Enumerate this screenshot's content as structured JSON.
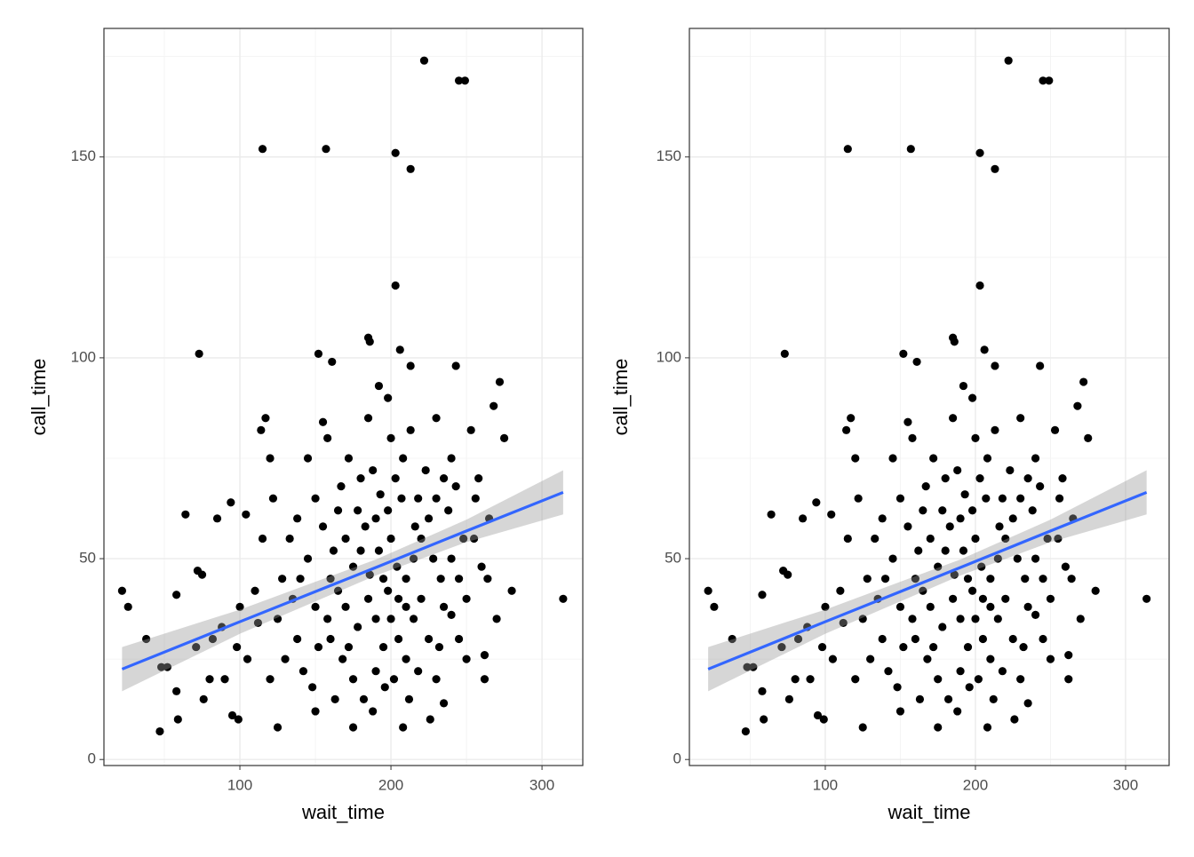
{
  "chart_data": [
    {
      "type": "scatter",
      "x_label": "wait_time",
      "y_label": "call_time",
      "color": "#000000",
      "grid": true,
      "xlim": [
        10,
        327
      ],
      "ylim": [
        -1.5,
        182
      ],
      "xticks": [
        100,
        200,
        300
      ],
      "yticks": [
        0,
        50,
        100,
        150
      ],
      "x_minor_grid": [
        50,
        150,
        250
      ],
      "y_minor_grid": [
        25,
        75,
        125,
        175
      ],
      "x": [
        22,
        26,
        38,
        47,
        48,
        52,
        58,
        58,
        59,
        64,
        71,
        72,
        73,
        75,
        76,
        80,
        82,
        85,
        88,
        90,
        94,
        95,
        98,
        99,
        104,
        112,
        114,
        115,
        117,
        120,
        125,
        138,
        150,
        152,
        155,
        157,
        161,
        175,
        185,
        186,
        192,
        203,
        203,
        206,
        208,
        213,
        213,
        222,
        235,
        245,
        249,
        243,
        262,
        272,
        275,
        280,
        314,
        268,
        262,
        270,
        230,
        200,
        180,
        165,
        170,
        190,
        140,
        145,
        135,
        150,
        160,
        168,
        175,
        182,
        190,
        195,
        200,
        205,
        210,
        215,
        220,
        225,
        230,
        235,
        240,
        245,
        250,
        255,
        260,
        265,
        150,
        155,
        160,
        165,
        170,
        175,
        180,
        185,
        190,
        195,
        200,
        205,
        210,
        215,
        220,
        225,
        230,
        235,
        240,
        245,
        130,
        125,
        120,
        128,
        133,
        138,
        142,
        148,
        152,
        158,
        163,
        167,
        172,
        178,
        183,
        188,
        193,
        198,
        203,
        208,
        213,
        218,
        223,
        228,
        233,
        238,
        243,
        248,
        253,
        258,
        110,
        105,
        100,
        115,
        122,
        188,
        196,
        202,
        212,
        218,
        226,
        232,
        240,
        250,
        256,
        264,
        145,
        158,
        185,
        198,
        207,
        216,
        186,
        192,
        198,
        204,
        210,
        178,
        172,
        162
      ],
      "y": [
        42,
        38,
        30,
        7,
        23,
        23,
        17,
        41,
        10,
        61,
        28,
        47,
        101,
        46,
        15,
        20,
        30,
        60,
        33,
        20,
        64,
        11,
        28,
        10,
        61,
        34,
        82,
        152,
        85,
        75,
        8,
        30,
        12,
        101,
        84,
        152,
        99,
        8,
        105,
        104,
        93,
        151,
        118,
        102,
        8,
        147,
        98,
        174,
        14,
        169,
        169,
        98,
        20,
        94,
        80,
        42,
        40,
        88,
        26,
        35,
        85,
        80,
        70,
        62,
        55,
        60,
        45,
        50,
        40,
        38,
        30,
        25,
        20,
        15,
        22,
        28,
        35,
        40,
        45,
        50,
        55,
        60,
        65,
        70,
        75,
        45,
        40,
        55,
        48,
        60,
        65,
        58,
        45,
        42,
        38,
        48,
        52,
        40,
        35,
        45,
        55,
        30,
        25,
        35,
        40,
        30,
        20,
        38,
        50,
        30,
        25,
        35,
        20,
        45,
        55,
        60,
        22,
        18,
        28,
        35,
        15,
        68,
        75,
        62,
        58,
        72,
        66,
        62,
        70,
        75,
        82,
        65,
        72,
        50,
        45,
        62,
        68,
        55,
        82,
        70,
        42,
        25,
        38,
        55,
        65,
        12,
        18,
        20,
        15,
        22,
        10,
        28,
        36,
        25,
        65,
        45,
        75,
        80,
        85,
        90,
        65,
        58,
        46,
        52,
        42,
        48,
        38,
        33,
        28,
        52
      ],
      "smooth": {
        "color": "#3366ff",
        "fill": "#999999",
        "x": [
          22,
          100,
          190,
          250,
          314
        ],
        "y": [
          22.5,
          34.3,
          47.8,
          56.9,
          66.5
        ],
        "ymin": [
          17,
          31.3,
          45.8,
          54.1,
          61
        ],
        "ymax": [
          28,
          37.3,
          49.8,
          59.7,
          72
        ]
      }
    },
    {
      "type": "scatter",
      "x_label": "wait_time",
      "y_label": "call_time",
      "color": "#000000",
      "grid": true,
      "xlim": [
        9.5,
        329
      ],
      "ylim": [
        -1.5,
        182
      ],
      "xticks": [
        100,
        200,
        300
      ],
      "yticks": [
        0,
        50,
        100,
        150
      ],
      "x_minor_grid": [
        50,
        150,
        250
      ],
      "y_minor_grid": [
        25,
        75,
        125,
        175
      ],
      "x": [
        22,
        26,
        38,
        47,
        48,
        52,
        58,
        58,
        59,
        64,
        71,
        72,
        73,
        75,
        76,
        80,
        82,
        85,
        88,
        90,
        94,
        95,
        98,
        99,
        104,
        112,
        114,
        115,
        117,
        120,
        125,
        138,
        150,
        152,
        155,
        157,
        161,
        175,
        185,
        186,
        192,
        203,
        203,
        206,
        208,
        213,
        213,
        222,
        235,
        245,
        249,
        243,
        262,
        272,
        275,
        280,
        314,
        268,
        262,
        270,
        230,
        200,
        180,
        165,
        170,
        190,
        140,
        145,
        135,
        150,
        160,
        168,
        175,
        182,
        190,
        195,
        200,
        205,
        210,
        215,
        220,
        225,
        230,
        235,
        240,
        245,
        250,
        255,
        260,
        265,
        150,
        155,
        160,
        165,
        170,
        175,
        180,
        185,
        190,
        195,
        200,
        205,
        210,
        215,
        220,
        225,
        230,
        235,
        240,
        245,
        130,
        125,
        120,
        128,
        133,
        138,
        142,
        148,
        152,
        158,
        163,
        167,
        172,
        178,
        183,
        188,
        193,
        198,
        203,
        208,
        213,
        218,
        223,
        228,
        233,
        238,
        243,
        248,
        253,
        258,
        110,
        105,
        100,
        115,
        122,
        188,
        196,
        202,
        212,
        218,
        226,
        232,
        240,
        250,
        256,
        264,
        145,
        158,
        185,
        198,
        207,
        216,
        186,
        192,
        198,
        204,
        210,
        178,
        172,
        162
      ],
      "y": [
        42,
        38,
        30,
        7,
        23,
        23,
        17,
        41,
        10,
        61,
        28,
        47,
        101,
        46,
        15,
        20,
        30,
        60,
        33,
        20,
        64,
        11,
        28,
        10,
        61,
        34,
        82,
        152,
        85,
        75,
        8,
        30,
        12,
        101,
        84,
        152,
        99,
        8,
        105,
        104,
        93,
        151,
        118,
        102,
        8,
        147,
        98,
        174,
        14,
        169,
        169,
        98,
        20,
        94,
        80,
        42,
        40,
        88,
        26,
        35,
        85,
        80,
        70,
        62,
        55,
        60,
        45,
        50,
        40,
        38,
        30,
        25,
        20,
        15,
        22,
        28,
        35,
        40,
        45,
        50,
        55,
        60,
        65,
        70,
        75,
        45,
        40,
        55,
        48,
        60,
        65,
        58,
        45,
        42,
        38,
        48,
        52,
        40,
        35,
        45,
        55,
        30,
        25,
        35,
        40,
        30,
        20,
        38,
        50,
        30,
        25,
        35,
        20,
        45,
        55,
        60,
        22,
        18,
        28,
        35,
        15,
        68,
        75,
        62,
        58,
        72,
        66,
        62,
        70,
        75,
        82,
        65,
        72,
        50,
        45,
        62,
        68,
        55,
        82,
        70,
        42,
        25,
        38,
        55,
        65,
        12,
        18,
        20,
        15,
        22,
        10,
        28,
        36,
        25,
        65,
        45,
        75,
        80,
        85,
        90,
        65,
        58,
        46,
        52,
        42,
        48,
        38,
        33,
        28,
        52
      ],
      "smooth": {
        "color": "#3366ff",
        "fill": "#999999",
        "x": [
          22,
          100,
          190,
          250,
          314
        ],
        "y": [
          22.5,
          34.3,
          47.8,
          56.9,
          66.5
        ],
        "ymin": [
          17,
          31.3,
          45.8,
          54.1,
          61
        ],
        "ymax": [
          28,
          37.3,
          49.8,
          59.7,
          72
        ]
      }
    }
  ]
}
